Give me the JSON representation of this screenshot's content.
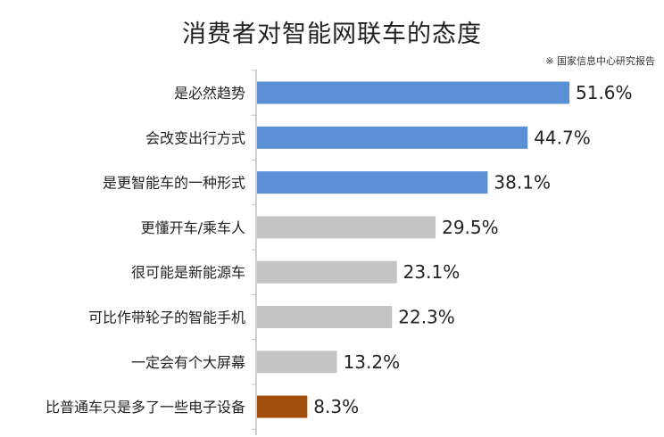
{
  "chart_data": {
    "type": "bar",
    "orientation": "horizontal",
    "title": "消费者对智能网联车的态度",
    "source": "※ 国家信息中心研究报告",
    "categories": [
      "是必然趋势",
      "会改变出行方式",
      "是更智能车的一种形式",
      "更懂开车/乘车人",
      "很可能是新能源车",
      "可比作带轮子的智能手机",
      "一定会有个大屏幕",
      "比普通车只是多了一些电子设备"
    ],
    "values": [
      51.6,
      44.7,
      38.1,
      29.5,
      23.1,
      22.3,
      13.2,
      8.3
    ],
    "value_labels": [
      "51.6%",
      "44.7%",
      "38.1%",
      "29.5%",
      "23.1%",
      "22.3%",
      "13.2%",
      "8.3%"
    ],
    "bar_colors": [
      "#5b8fd6",
      "#5b8fd6",
      "#5b8fd6",
      "#c4c4c4",
      "#c4c4c4",
      "#c4c4c4",
      "#c4c4c4",
      "#a34d0a"
    ],
    "axis_color": "#bfbfbf",
    "xlim": [
      0,
      51.6
    ],
    "grid": false,
    "legend": "none"
  }
}
